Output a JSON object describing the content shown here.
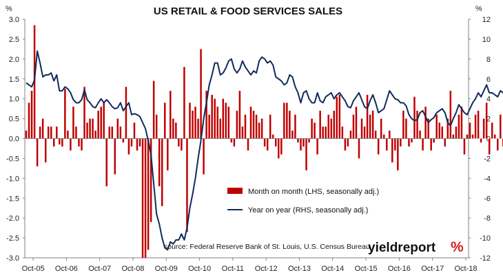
{
  "chart_data": {
    "type": "bar+line",
    "title": "US RETAIL & FOOD SERVICES SALES",
    "left_unit": "%",
    "right_unit": "%",
    "source": "source: Federal Reserve Bank of St. Louis, U.S. Census Bureau",
    "logo": {
      "text": "yieldreport",
      "mark": "%",
      "color": "#d21f1f"
    },
    "x_tick_labels": [
      "Oct-05",
      "Oct-06",
      "Oct-07",
      "Oct-08",
      "Oct-09",
      "Oct-10",
      "Oct-11",
      "Oct-12",
      "Oct-13",
      "Oct-14",
      "Oct-15",
      "Oct-16",
      "Oct-17",
      "Oct-18"
    ],
    "left_axis": {
      "min": -3.0,
      "max": 3.0,
      "ticks": [
        3.0,
        2.5,
        2.0,
        1.5,
        1.0,
        0.5,
        0.0,
        -0.5,
        -1.0,
        -1.5,
        -2.0,
        -2.5,
        -3.0
      ]
    },
    "right_axis": {
      "min": -12,
      "max": 12,
      "ticks": [
        12,
        10,
        8,
        6,
        4,
        2,
        0,
        -2,
        -4,
        -6,
        -8,
        -10,
        -12
      ]
    },
    "legend": [
      {
        "label": "Month on month (LHS, seasonally adj.)",
        "color": "#c00000",
        "kind": "bar"
      },
      {
        "label": "Year on year (RHS, seasonally adj.)",
        "color": "#0f2a5c",
        "kind": "line"
      }
    ],
    "series": [
      {
        "name": "Month on month (LHS, seasonally adj.)",
        "axis": "left",
        "start": "2005-07",
        "values": [
          0.2,
          0.9,
          1.2,
          2.85,
          -0.7,
          0.3,
          0.5,
          -0.6,
          0.3,
          0.3,
          -0.2,
          0.3,
          -0.15,
          -0.2,
          1.25,
          0.2,
          -0.3,
          0.8,
          0.3,
          -0.2,
          -0.3,
          1.3,
          0.4,
          0.5,
          0.5,
          0.2,
          0.7,
          0.8,
          0.9,
          -1.2,
          0.3,
          0.3,
          -0.9,
          0.5,
          0.3,
          -0.1,
          1.3,
          -0.4,
          -0.2,
          0.4,
          -0.3,
          -0.2,
          -3.0,
          -3.0,
          -2.8,
          -2.1,
          1.45,
          0.6,
          -1.2,
          -1.7,
          0.9,
          -0.8,
          1.2,
          0.5,
          0.4,
          -0.2,
          -0.3,
          1.8,
          -2.35,
          0.9,
          0.7,
          0.8,
          0.5,
          2.25,
          -0.9,
          1.2,
          0.6,
          1.1,
          1.0,
          0.8,
          0.5,
          1.0,
          0.9,
          0.8,
          -0.1,
          -0.2,
          0.7,
          1.2,
          0.3,
          0.6,
          -0.3,
          0.8,
          0.7,
          0.6,
          0.4,
          0.5,
          -0.2,
          -0.3,
          0.6,
          0.1,
          -0.2,
          -0.5,
          -0.4,
          0.9,
          0.9,
          0.7,
          0.2,
          0.6,
          -0.1,
          -0.3,
          -0.2,
          -0.8,
          -0.1,
          0.5,
          0.4,
          -0.4,
          0.7,
          0.3,
          0.3,
          0.6,
          0.5,
          0.7,
          1.05,
          1.1,
          0.3,
          -0.3,
          -0.2,
          0.2,
          0.6,
          0.8,
          -0.5,
          0.5,
          0.3,
          1.1,
          0.6,
          0.7,
          0.2,
          -0.4,
          0.5,
          0.1,
          -0.3,
          0.2,
          -0.6,
          -0.3,
          -0.8,
          -0.2,
          0.7,
          0.5,
          -0.2,
          -0.1,
          1.05,
          0.7,
          0.2,
          -0.3,
          0.8,
          0.5,
          -0.3,
          -0.1,
          0.6,
          0.4,
          0.3,
          -0.2,
          0.5,
          1.2,
          0.1,
          0.3,
          0.6,
          0.8,
          -0.4,
          0.1,
          0.4,
          0.1,
          0.6,
          0.7,
          -0.1,
          0.5,
          0.9,
          -0.4,
          0.4,
          0.1,
          -0.3,
          0.6,
          -0.2,
          0.6,
          0.1,
          -0.2,
          2.0,
          0.3,
          0.8,
          0.3,
          0.2,
          0.6,
          0.7,
          -0.2,
          0.5,
          1.25,
          0.2,
          0.1,
          0.6,
          0.1,
          -0.05,
          -0.05,
          0.75
        ]
      },
      {
        "name": "Year on year (RHS, seasonally adj.)",
        "axis": "right",
        "start": "2005-07",
        "values": [
          5.6,
          5.4,
          5.2,
          5.9,
          8.8,
          7.6,
          6.2,
          6.4,
          6.4,
          6.6,
          5.8,
          6.4,
          4.8,
          4.8,
          5.2,
          5.0,
          4.6,
          3.9,
          3.6,
          3.6,
          3.9,
          4.9,
          3.9,
          3.6,
          3.2,
          3.1,
          3.6,
          4.0,
          3.6,
          3.9,
          3.6,
          3.2,
          3.0,
          3.1,
          3.6,
          2.8,
          3.2,
          3.6,
          2.4,
          2.5,
          2.4,
          2.2,
          1.6,
          1.0,
          -0.2,
          -1.6,
          -4.6,
          -7.6,
          -8.6,
          -10.0,
          -11.0,
          -11.2,
          -10.4,
          -10.6,
          -10.2,
          -10.2,
          -9.6,
          -10.2,
          -9.0,
          -7.0,
          -5.6,
          -4.0,
          -2.0,
          -0.2,
          2.0,
          3.6,
          5.4,
          6.4,
          7.6,
          7.6,
          6.4,
          6.6,
          7.1,
          7.8,
          8.0,
          7.0,
          6.6,
          7.0,
          7.8,
          7.2,
          6.8,
          6.4,
          6.8,
          6.6,
          7.8,
          8.2,
          8.0,
          7.6,
          7.8,
          7.4,
          6.2,
          6.0,
          5.8,
          5.4,
          5.6,
          6.4,
          6.2,
          5.2,
          4.6,
          3.6,
          4.6,
          4.8,
          4.0,
          3.6,
          3.6,
          4.6,
          3.8,
          3.6,
          4.2,
          4.4,
          4.6,
          4.0,
          4.4,
          4.6,
          4.2,
          3.8,
          3.2,
          3.1,
          3.8,
          4.2,
          4.6,
          3.9,
          3.2,
          3.0,
          3.8,
          4.4,
          3.6,
          2.6,
          2.8,
          3.0,
          3.9,
          4.8,
          4.4,
          4.0,
          3.9,
          3.6,
          3.6,
          3.3,
          2.4,
          2.0,
          1.8,
          1.9,
          2.6,
          2.8,
          2.2,
          1.6,
          1.9,
          2.1,
          2.6,
          2.8,
          3.0,
          2.6,
          1.6,
          1.3,
          2.0,
          2.6,
          3.4,
          3.0,
          2.6,
          2.4,
          3.0,
          3.6,
          4.0,
          4.6,
          4.2,
          4.8,
          5.4,
          4.6,
          4.6,
          4.4,
          4.2,
          4.8,
          4.6,
          3.9,
          3.2,
          3.0,
          3.6,
          4.2,
          4.4,
          4.7,
          5.6,
          6.0,
          5.2,
          6.0,
          6.2,
          6.0,
          6.4,
          6.0,
          6.6,
          6.4,
          6.5,
          6.1,
          4.2,
          4.2,
          4.6
        ]
      }
    ]
  }
}
